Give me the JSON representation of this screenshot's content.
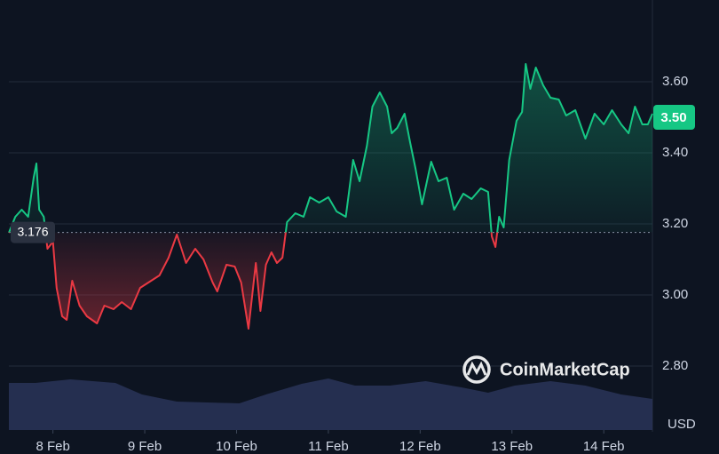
{
  "chart_data": {
    "type": "line",
    "currency": "USD",
    "watermark": "CoinMarketCap",
    "baseline": 3.176,
    "price_tag": {
      "value": 3.5,
      "label": "3.50"
    },
    "up_color": "#16c784",
    "down_color": "#ea3943",
    "volume_color": "#2a3458",
    "xlim": [
      7.52,
      14.53
    ],
    "xticks": [
      {
        "value": 8,
        "label": "8 Feb"
      },
      {
        "value": 9,
        "label": "9 Feb"
      },
      {
        "value": 10,
        "label": "10 Feb"
      },
      {
        "value": 11,
        "label": "11 Feb"
      },
      {
        "value": 12,
        "label": "12 Feb"
      },
      {
        "value": 13,
        "label": "13 Feb"
      },
      {
        "value": 14,
        "label": "14 Feb"
      }
    ],
    "ylim": [
      2.62,
      3.8
    ],
    "yticks": [
      {
        "value": 2.8,
        "label": "2.80"
      },
      {
        "value": 3.0,
        "label": "3.00"
      },
      {
        "value": 3.2,
        "label": "3.20"
      },
      {
        "value": 3.4,
        "label": "3.40"
      },
      {
        "value": 3.6,
        "label": "3.60"
      }
    ],
    "grid": true,
    "x": [
      7.52,
      7.59,
      7.66,
      7.73,
      7.79,
      7.82,
      7.85,
      7.9,
      7.94,
      8.0,
      8.04,
      8.1,
      8.15,
      8.21,
      8.29,
      8.37,
      8.48,
      8.56,
      8.66,
      8.75,
      8.85,
      8.95,
      9.04,
      9.16,
      9.26,
      9.35,
      9.45,
      9.55,
      9.64,
      9.74,
      9.79,
      9.89,
      9.98,
      10.05,
      10.13,
      10.21,
      10.26,
      10.32,
      10.38,
      10.44,
      10.5,
      10.55,
      10.64,
      10.73,
      10.8,
      10.9,
      11.0,
      11.09,
      11.19,
      11.27,
      11.34,
      11.42,
      11.48,
      11.56,
      11.64,
      11.69,
      11.75,
      11.83,
      11.89,
      11.95,
      12.02,
      12.12,
      12.2,
      12.29,
      12.37,
      12.47,
      12.56,
      12.66,
      12.74,
      12.78,
      12.82,
      12.86,
      12.91,
      12.97,
      13.05,
      13.11,
      13.15,
      13.2,
      13.26,
      13.34,
      13.42,
      13.51,
      13.59,
      13.69,
      13.8,
      13.9,
      14.0,
      14.09,
      14.19,
      14.27,
      14.34,
      14.42,
      14.48,
      14.53
    ],
    "values": [
      3.175,
      3.22,
      3.24,
      3.22,
      3.33,
      3.37,
      3.24,
      3.22,
      3.13,
      3.15,
      3.02,
      2.94,
      2.93,
      3.04,
      2.97,
      2.94,
      2.92,
      2.97,
      2.96,
      2.98,
      2.96,
      3.02,
      3.035,
      3.055,
      3.105,
      3.17,
      3.09,
      3.13,
      3.1,
      3.035,
      3.01,
      3.085,
      3.08,
      3.035,
      2.905,
      3.09,
      2.955,
      3.085,
      3.12,
      3.09,
      3.105,
      3.205,
      3.23,
      3.22,
      3.275,
      3.26,
      3.275,
      3.235,
      3.22,
      3.38,
      3.32,
      3.42,
      3.53,
      3.57,
      3.53,
      3.455,
      3.47,
      3.51,
      3.43,
      3.355,
      3.255,
      3.375,
      3.32,
      3.33,
      3.24,
      3.285,
      3.27,
      3.3,
      3.29,
      3.165,
      3.135,
      3.22,
      3.19,
      3.38,
      3.49,
      3.515,
      3.65,
      3.58,
      3.64,
      3.59,
      3.555,
      3.55,
      3.505,
      3.52,
      3.44,
      3.51,
      3.48,
      3.52,
      3.48,
      3.455,
      3.53,
      3.48,
      3.48,
      3.51
    ],
    "volume": {
      "vlim": [
        0,
        100
      ],
      "x": [
        7.52,
        7.81,
        8.19,
        8.68,
        8.97,
        9.35,
        10.03,
        10.32,
        10.71,
        11.0,
        11.29,
        11.67,
        12.06,
        12.45,
        12.74,
        13.03,
        13.42,
        13.8,
        14.19,
        14.53
      ],
      "values": [
        53,
        53,
        57,
        53,
        40,
        32,
        30,
        40,
        52,
        58,
        50,
        50,
        55,
        48,
        42,
        50,
        55,
        50,
        40,
        35
      ]
    }
  }
}
